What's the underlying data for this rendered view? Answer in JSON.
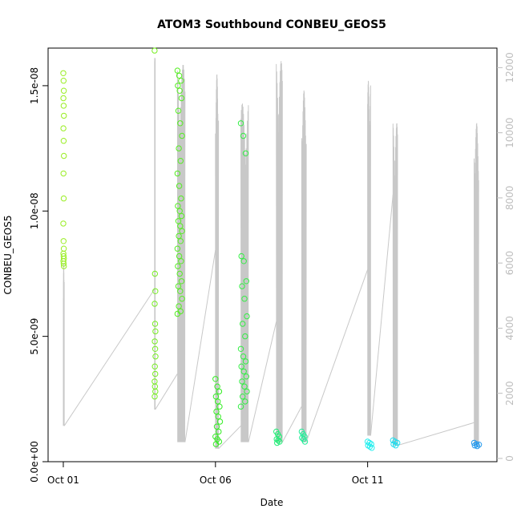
{
  "chart_data": {
    "type": "scatter",
    "title": "ATOM3 Southbound CONBEU_GEOS5",
    "xlabel": "Date",
    "ylabel": "CONBEU_GEOS5",
    "x_unit": "days",
    "xlim": [
      "2016-09-30T12:00",
      "2016-10-15T06:00"
    ],
    "ylim": [
      0,
      1.65e-08
    ],
    "y_ticks": [
      0,
      5e-09,
      1e-08,
      1.5e-08
    ],
    "y_tick_labels": [
      "0.0e+00",
      "5.0e-09",
      "1.0e-08",
      "1.5e-08"
    ],
    "x_ticks": [
      "2016-10-01",
      "2016-10-06",
      "2016-10-11"
    ],
    "x_tick_labels": [
      "Oct 01",
      "Oct 06",
      "Oct 11"
    ],
    "y2_ticks": [
      0,
      2000,
      4000,
      6000,
      8000,
      10000,
      12000
    ],
    "y2_tick_labels": [
      "0",
      "2000",
      "4000",
      "6000",
      "8000",
      "10000",
      "12000"
    ],
    "y2lim": [
      -100,
      12600
    ],
    "grid": false,
    "series": [
      {
        "kind": "points",
        "clusters": [
          {
            "t": "2016-10-01T00:00",
            "dt": 0.02,
            "y": [
              1.55e-08,
              1.52e-08,
              1.48e-08,
              1.45e-08,
              1.42e-08,
              1.38e-08,
              1.33e-08,
              1.28e-08,
              1.22e-08,
              1.15e-08,
              1.05e-08,
              9.5e-09,
              8.8e-09,
              8.5e-09,
              8.3e-09,
              8.2e-09,
              8.1e-09,
              8e-09,
              7.9e-09,
              7.8e-09
            ],
            "color": "#99ee22"
          },
          {
            "t": "2016-10-04T00:00",
            "dt": 0.03,
            "y": [
              1.64e-08,
              7.5e-09,
              6.8e-09,
              6.3e-09,
              5.5e-09,
              5.2e-09,
              4.8e-09,
              4.5e-09,
              4.2e-09,
              3.8e-09,
              3.5e-09,
              3.2e-09,
              3e-09,
              2.8e-09,
              2.6e-09
            ],
            "color": "#77ee22"
          },
          {
            "t": "2016-10-04T18:00",
            "dt": 0.15,
            "y": [
              1.56e-08,
              1.54e-08,
              1.52e-08,
              1.5e-08,
              1.48e-08,
              1.45e-08,
              1.4e-08,
              1.35e-08,
              1.3e-08,
              1.25e-08,
              1.2e-08,
              1.15e-08,
              1.1e-08,
              1.05e-08,
              1.02e-08,
              1e-08,
              9.8e-09,
              9.6e-09,
              9.4e-09,
              9.2e-09,
              9e-09,
              8.8e-09,
              8.5e-09,
              8.2e-09,
              8e-09,
              7.8e-09,
              7.5e-09,
              7.2e-09,
              7e-09,
              6.8e-09,
              6.5e-09,
              6.2e-09,
              6e-09,
              5.9e-09
            ],
            "color": "#55ee22"
          },
          {
            "t": "2016-10-06T00:00",
            "dt": 0.15,
            "y": [
              3.3e-09,
              3e-09,
              2.8e-09,
              2.6e-09,
              2.4e-09,
              2.2e-09,
              2e-09,
              1.8e-09,
              1.6e-09,
              1.4e-09,
              1.2e-09,
              1e-09,
              9e-10,
              8e-10,
              7e-10
            ],
            "color": "#33ee22"
          },
          {
            "t": "2016-10-06T20:00",
            "dt": 0.2,
            "y": [
              1.35e-08,
              1.3e-08,
              1.23e-08,
              8.2e-09,
              8e-09,
              7.2e-09,
              7e-09,
              6.5e-09,
              5.8e-09,
              5.5e-09,
              5e-09,
              4.5e-09,
              4.2e-09,
              4e-09,
              3.8e-09,
              3.6e-09,
              3.4e-09,
              3.2e-09,
              3e-09,
              2.8e-09,
              2.6e-09,
              2.4e-09,
              2.2e-09
            ],
            "color": "#33ee44"
          },
          {
            "t": "2016-10-08T00:00",
            "dt": 0.12,
            "y": [
              1.2e-09,
              1.1e-09,
              1e-09,
              9e-10,
              8.5e-10,
              8e-10,
              7.5e-10
            ],
            "color": "#22ee77"
          },
          {
            "t": "2016-10-08T20:00",
            "dt": 0.12,
            "y": [
              1.2e-09,
              1.1e-09,
              1e-09,
              9.5e-10,
              9e-10,
              8e-10
            ],
            "color": "#22ee99"
          },
          {
            "t": "2016-10-11T00:00",
            "dt": 0.15,
            "y": [
              8e-10,
              7.5e-10,
              7e-10,
              6.5e-10,
              6e-10,
              5.5e-10
            ],
            "color": "#22eeee"
          },
          {
            "t": "2016-10-11T20:00",
            "dt": 0.18,
            "y": [
              8.5e-10,
              8e-10,
              7.5e-10,
              7e-10,
              6.5e-10
            ],
            "color": "#22ddee"
          },
          {
            "t": "2016-10-14T12:00",
            "dt": 0.2,
            "y": [
              7.5e-10,
              7e-10,
              6.8e-10,
              6.5e-10,
              6.2e-10
            ],
            "color": "#2299ee"
          }
        ]
      },
      {
        "kind": "altitude",
        "axis": "y2",
        "color": "#c8c8c8",
        "flights": [
          {
            "t": "2016-10-01T00:00",
            "dt": 0.03,
            "peak": 6000,
            "low": 1000
          },
          {
            "t": "2016-10-04T00:00",
            "dt": 0.02,
            "peak": 12300,
            "low": 1500
          },
          {
            "t": "2016-10-04T18:00",
            "dt": 0.25,
            "peak": 12100,
            "low": 500
          },
          {
            "t": "2016-10-06T00:00",
            "dt": 0.1,
            "peak": 11800,
            "low": 300
          },
          {
            "t": "2016-10-06T20:00",
            "dt": 0.25,
            "peak": 10900,
            "low": 500
          },
          {
            "t": "2016-10-08T00:00",
            "dt": 0.2,
            "peak": 12200,
            "low": 500
          },
          {
            "t": "2016-10-08T20:00",
            "dt": 0.15,
            "peak": 11300,
            "low": 500
          },
          {
            "t": "2016-10-11T00:00",
            "dt": 0.1,
            "peak": 11600,
            "low": 700
          },
          {
            "t": "2016-10-11T20:00",
            "dt": 0.15,
            "peak": 10300,
            "low": 400
          },
          {
            "t": "2016-10-14T12:00",
            "dt": 0.15,
            "peak": 10300,
            "low": 400
          }
        ],
        "connections": [
          [
            1000,
            5200
          ],
          [
            1500,
            2600
          ],
          [
            500,
            6400
          ],
          [
            300,
            1000
          ],
          [
            500,
            4200
          ],
          [
            500,
            1600
          ],
          [
            500,
            5800
          ],
          [
            700,
            8100
          ],
          [
            400,
            1100
          ],
          [
            400,
            400
          ]
        ]
      }
    ]
  }
}
